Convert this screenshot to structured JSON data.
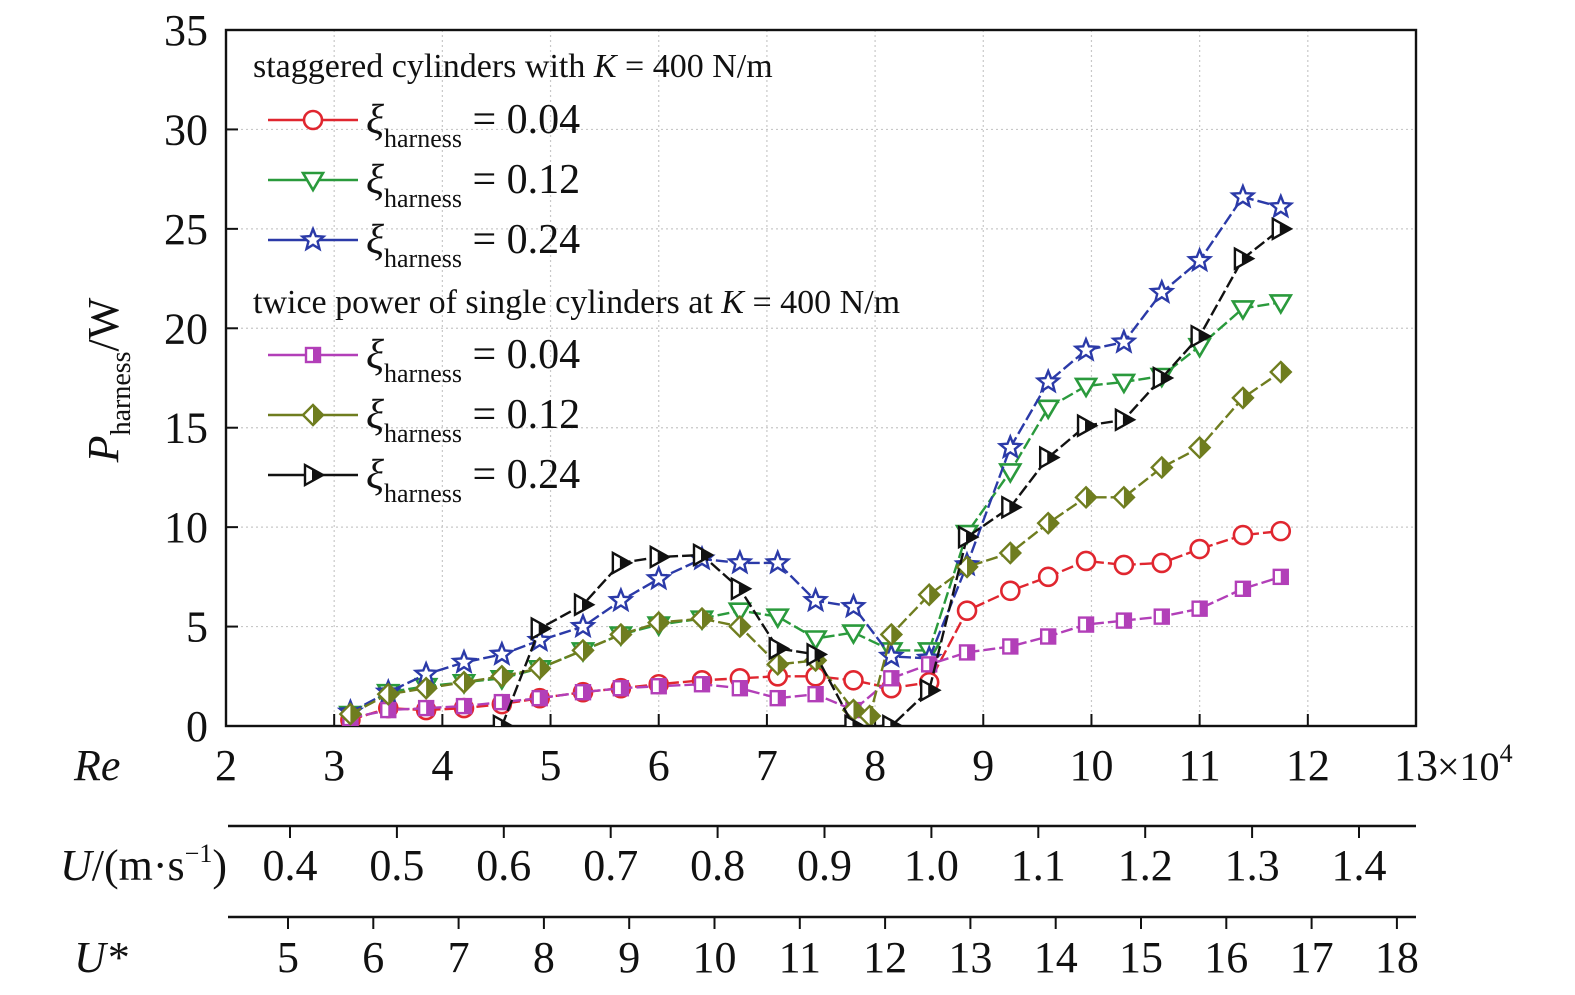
{
  "chart_data": {
    "type": "line",
    "ylabel_main": "P",
    "ylabel_sub": "harness",
    "ylabel_unit": "/W",
    "ylim": [
      0,
      35
    ],
    "yticks": [
      0,
      5,
      10,
      15,
      20,
      25,
      30,
      35
    ],
    "xlim": [
      2,
      13
    ],
    "xticks": [
      2,
      3,
      4,
      5,
      6,
      7,
      8,
      9,
      10,
      11,
      12,
      13
    ],
    "grid": true,
    "x_axis_label": "Re",
    "x_multiplier": "×10",
    "x_multiplier_exp": "4",
    "u_axis": {
      "label_main": "U",
      "label_rest": "/(m·s",
      "label_exp": "−1",
      "label_close": ")",
      "ticks": [
        "0.4",
        "0.5",
        "0.6",
        "0.7",
        "0.8",
        "0.9",
        "1.0",
        "1.1",
        "1.2",
        "1.3",
        "1.4"
      ],
      "tick_values": [
        0.4,
        0.5,
        0.6,
        0.7,
        0.8,
        0.9,
        1.0,
        1.1,
        1.2,
        1.3,
        1.4
      ]
    },
    "ustar_axis": {
      "label": "U*",
      "ticks": [
        "5",
        "6",
        "7",
        "8",
        "9",
        "10",
        "11",
        "12",
        "13",
        "14",
        "15",
        "16",
        "17",
        "18"
      ],
      "tick_values": [
        5,
        6,
        7,
        8,
        9,
        10,
        11,
        12,
        13,
        14,
        15,
        16,
        17,
        18
      ]
    },
    "legend": {
      "position": "top-left",
      "group1_title_pre": "staggered cylinders with ",
      "group1_title_k": "K",
      "group1_title_post": " = 400 N/m",
      "group2_title_pre": "twice power of single cylinders at ",
      "group2_title_k": "K",
      "group2_title_post": " = 400 N/m",
      "symbol": "ξ",
      "subscript": "harness"
    },
    "series": [
      {
        "name": "staggered ξharness = 0.04",
        "legend_value": "= 0.04",
        "color": "#e0262f",
        "marker": "circle",
        "points": [
          [
            3.15,
            0.3
          ],
          [
            3.5,
            0.9
          ],
          [
            3.85,
            0.8
          ],
          [
            4.2,
            0.9
          ],
          [
            4.55,
            1.1
          ],
          [
            4.9,
            1.4
          ],
          [
            5.3,
            1.7
          ],
          [
            5.65,
            1.9
          ],
          [
            6.0,
            2.1
          ],
          [
            6.4,
            2.3
          ],
          [
            6.75,
            2.4
          ],
          [
            7.1,
            2.5
          ],
          [
            7.45,
            2.5
          ],
          [
            7.8,
            2.3
          ],
          [
            8.15,
            1.9
          ],
          [
            8.5,
            2.2
          ],
          [
            8.85,
            5.8
          ],
          [
            9.25,
            6.8
          ],
          [
            9.6,
            7.5
          ],
          [
            9.95,
            8.3
          ],
          [
            10.3,
            8.1
          ],
          [
            10.65,
            8.2
          ],
          [
            11.0,
            8.9
          ],
          [
            11.4,
            9.6
          ],
          [
            11.75,
            9.8
          ]
        ]
      },
      {
        "name": "staggered ξharness = 0.12",
        "legend_value": "= 0.12",
        "color": "#2a9a3c",
        "marker": "triangle-down",
        "points": [
          [
            3.15,
            0.6
          ],
          [
            3.5,
            1.7
          ],
          [
            3.85,
            2.0
          ],
          [
            4.2,
            2.2
          ],
          [
            4.55,
            2.4
          ],
          [
            4.9,
            2.9
          ],
          [
            5.3,
            3.8
          ],
          [
            5.65,
            4.6
          ],
          [
            6.0,
            5.1
          ],
          [
            6.4,
            5.4
          ],
          [
            6.75,
            5.8
          ],
          [
            7.1,
            5.5
          ],
          [
            7.45,
            4.4
          ],
          [
            7.8,
            4.7
          ],
          [
            8.15,
            3.8
          ],
          [
            8.5,
            3.8
          ],
          [
            8.85,
            9.7
          ],
          [
            9.25,
            12.8
          ],
          [
            9.6,
            16.0
          ],
          [
            9.95,
            17.1
          ],
          [
            10.3,
            17.3
          ],
          [
            10.65,
            17.6
          ],
          [
            11.0,
            19.1
          ],
          [
            11.4,
            21.0
          ],
          [
            11.75,
            21.3
          ]
        ]
      },
      {
        "name": "staggered ξharness = 0.24",
        "legend_value": "= 0.24",
        "color": "#2b3aa8",
        "marker": "star",
        "points": [
          [
            3.15,
            0.7
          ],
          [
            3.5,
            1.7
          ],
          [
            3.85,
            2.6
          ],
          [
            4.2,
            3.2
          ],
          [
            4.55,
            3.6
          ],
          [
            4.9,
            4.3
          ],
          [
            5.3,
            5.0
          ],
          [
            5.65,
            6.3
          ],
          [
            6.0,
            7.4
          ],
          [
            6.4,
            8.4
          ],
          [
            6.75,
            8.2
          ],
          [
            7.1,
            8.2
          ],
          [
            7.45,
            6.3
          ],
          [
            7.8,
            6.0
          ],
          [
            8.15,
            3.5
          ],
          [
            8.5,
            3.4
          ],
          [
            8.85,
            8.1
          ],
          [
            9.25,
            14.0
          ],
          [
            9.6,
            17.3
          ],
          [
            9.95,
            18.9
          ],
          [
            10.3,
            19.3
          ],
          [
            10.65,
            21.8
          ],
          [
            11.0,
            23.4
          ],
          [
            11.4,
            26.6
          ],
          [
            11.75,
            26.1
          ]
        ]
      },
      {
        "name": "single ξharness = 0.04",
        "legend_value": "= 0.04",
        "color": "#b23fb8",
        "marker": "square-half",
        "points": [
          [
            3.15,
            0.4
          ],
          [
            3.5,
            0.8
          ],
          [
            3.85,
            0.9
          ],
          [
            4.2,
            1.0
          ],
          [
            4.55,
            1.2
          ],
          [
            4.9,
            1.4
          ],
          [
            5.3,
            1.7
          ],
          [
            5.65,
            1.9
          ],
          [
            6.0,
            2.0
          ],
          [
            6.4,
            2.1
          ],
          [
            6.75,
            1.9
          ],
          [
            7.1,
            1.4
          ],
          [
            7.45,
            1.6
          ],
          [
            7.8,
            0.8
          ],
          [
            8.15,
            2.4
          ],
          [
            8.5,
            3.1
          ],
          [
            8.85,
            3.7
          ],
          [
            9.25,
            4.0
          ],
          [
            9.6,
            4.5
          ],
          [
            9.95,
            5.1
          ],
          [
            10.3,
            5.3
          ],
          [
            10.65,
            5.5
          ],
          [
            11.0,
            5.9
          ],
          [
            11.4,
            6.9
          ],
          [
            11.75,
            7.5
          ]
        ]
      },
      {
        "name": "single ξharness = 0.12",
        "legend_value": "= 0.12",
        "color": "#6f7d1f",
        "marker": "diamond-half",
        "points": [
          [
            3.15,
            0.6
          ],
          [
            3.5,
            1.6
          ],
          [
            3.85,
            1.9
          ],
          [
            4.2,
            2.2
          ],
          [
            4.55,
            2.5
          ],
          [
            4.9,
            2.9
          ],
          [
            5.3,
            3.8
          ],
          [
            5.65,
            4.6
          ],
          [
            6.0,
            5.2
          ],
          [
            6.4,
            5.4
          ],
          [
            6.75,
            5.0
          ],
          [
            7.1,
            3.1
          ],
          [
            7.45,
            3.3
          ],
          [
            7.8,
            0.8
          ],
          [
            7.95,
            0.5
          ],
          [
            8.15,
            4.6
          ],
          [
            8.5,
            6.6
          ],
          [
            8.85,
            8.0
          ],
          [
            9.25,
            8.7
          ],
          [
            9.6,
            10.2
          ],
          [
            9.95,
            11.5
          ],
          [
            10.3,
            11.5
          ],
          [
            10.65,
            13.0
          ],
          [
            11.0,
            14.0
          ],
          [
            11.4,
            16.5
          ],
          [
            11.75,
            17.8
          ]
        ]
      },
      {
        "name": "single ξharness = 0.24",
        "legend_value": "= 0.24",
        "color": "#111111",
        "marker": "triangle-right-half",
        "points": [
          [
            4.55,
            0.0
          ],
          [
            4.9,
            4.9
          ],
          [
            5.3,
            6.1
          ],
          [
            5.65,
            8.2
          ],
          [
            6.0,
            8.5
          ],
          [
            6.4,
            8.6
          ],
          [
            6.75,
            6.9
          ],
          [
            7.1,
            3.9
          ],
          [
            7.45,
            3.6
          ],
          [
            7.8,
            0.0
          ],
          [
            8.15,
            0.0
          ],
          [
            8.5,
            1.8
          ],
          [
            8.85,
            9.5
          ],
          [
            9.25,
            11.0
          ],
          [
            9.6,
            13.5
          ],
          [
            9.95,
            15.1
          ],
          [
            10.3,
            15.4
          ],
          [
            10.65,
            17.5
          ],
          [
            11.0,
            19.6
          ],
          [
            11.4,
            23.5
          ],
          [
            11.75,
            25.0
          ]
        ]
      }
    ]
  }
}
